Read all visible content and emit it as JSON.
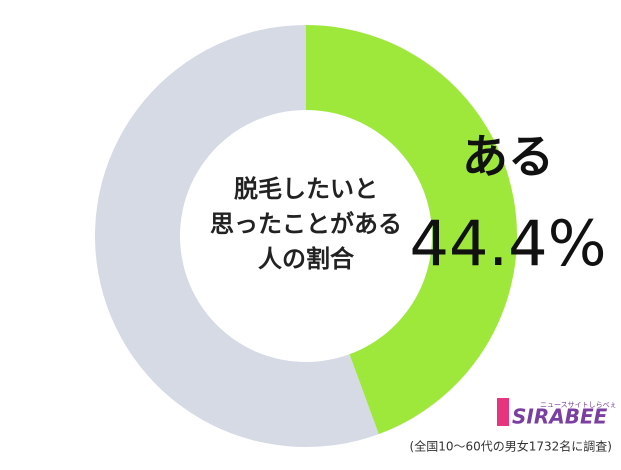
{
  "chart_data": {
    "type": "donut",
    "title": [
      "脱毛したいと",
      "思ったことがある",
      "人の割合"
    ],
    "categories": [
      "ある",
      null
    ],
    "values": [
      44.4,
      55.6
    ],
    "value_labels": [
      "44.4%",
      null
    ],
    "colors": [
      "#9de83a",
      "#d5dae4"
    ],
    "source": "(全国10〜60代の男女1732名に調査)",
    "logo": {
      "name": "SIRABEE",
      "tagline": "ニュースサイトしらべぇ"
    }
  }
}
